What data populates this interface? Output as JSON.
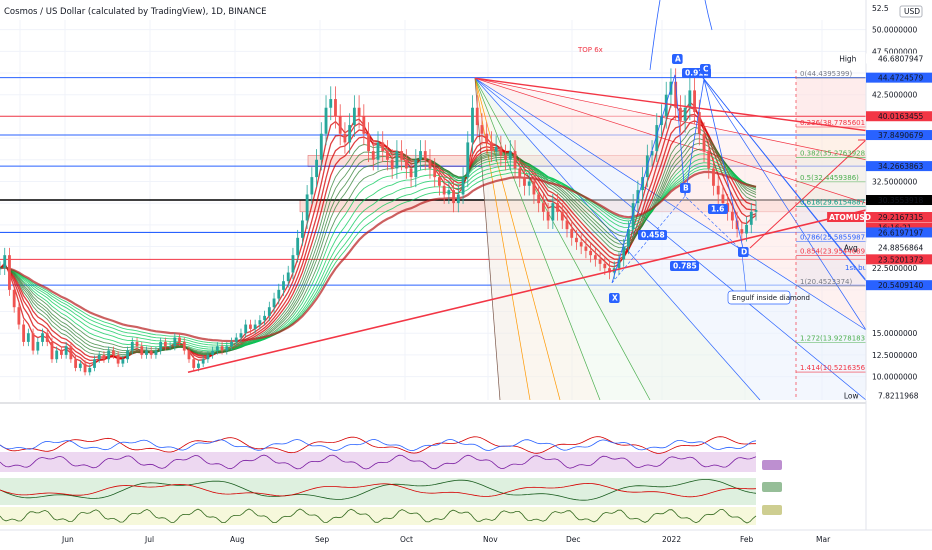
{
  "chart_data": {
    "type": "candlestick",
    "title": "Cosmos / US Dollar (calculated by TradingView), 1D, BINANCE",
    "currency_badge": "USD",
    "x_tick_labels": [
      "Jun",
      "Jul",
      "Aug",
      "Sep",
      "Oct",
      "Nov",
      "Dec",
      "2022",
      "Feb",
      "Mar"
    ],
    "y_tick_labels": [
      "52.5",
      "50.0000000",
      "47.5000000",
      "42.5000000",
      "32.5000000",
      "22.5000000",
      "15.0000000",
      "12.5000000",
      "10.0000000"
    ],
    "price_markers": [
      {
        "label": "High",
        "value": "46.6807947",
        "color": "#ffffff",
        "text_color": "#131722"
      },
      {
        "label": "",
        "value": "44.4724579",
        "color": "#2962ff",
        "text_color": "#ffffff"
      },
      {
        "label": "",
        "value": "40.0163455",
        "color": "#f23645",
        "text_color": "#ffffff"
      },
      {
        "label": "",
        "value": "37.8490679",
        "color": "#2962ff",
        "text_color": "#ffffff"
      },
      {
        "label": "",
        "value": "34.2663863",
        "color": "#2962ff",
        "text_color": "#ffffff"
      },
      {
        "label": "",
        "value": "30.3553918",
        "color": "#000000",
        "text_color": "#ffffff"
      },
      {
        "label": "ATOMUSD",
        "value": "29.2167315",
        "color": "#f23645",
        "text_color": "#ffffff"
      },
      {
        "label": "",
        "value": "16:16:21",
        "color": "#f23645",
        "text_color": "#ffffff"
      },
      {
        "label": "",
        "value": "26.6197197",
        "color": "#2962ff",
        "text_color": "#ffffff"
      },
      {
        "label": "Avg",
        "value": "24.8856864",
        "color": "#ffffff",
        "text_color": "#131722"
      },
      {
        "label": "",
        "value": "23.5201373",
        "color": "#f23645",
        "text_color": "#ffffff"
      },
      {
        "label": "",
        "value": "20.5409140",
        "color": "#2962ff",
        "text_color": "#ffffff"
      },
      {
        "label": "Low",
        "value": "7.8211968",
        "color": "#ffffff",
        "text_color": "#131722"
      }
    ],
    "fib_levels": [
      {
        "label": "0(44.4395399)",
        "color": "#787b86"
      },
      {
        "label": "0.236(38.7785601)",
        "color": "#f23645"
      },
      {
        "label": "0.382(35.2763928)",
        "color": "#4caf50"
      },
      {
        "label": "0.5(32.4459386)",
        "color": "#4caf50"
      },
      {
        "label": "0.618(29.6154887)",
        "color": "#089981"
      },
      {
        "label": "0.786(25.5855987)",
        "color": "#2962ff"
      },
      {
        "label": "0.854(23.9544689)",
        "color": "#f23645"
      },
      {
        "label": "1(20.4523374)",
        "color": "#787b86"
      },
      {
        "label": "1.272(13.9278183)",
        "color": "#4caf50"
      },
      {
        "label": "1.414(10.5216356)",
        "color": "#f23645"
      }
    ],
    "annotations": {
      "top": "TOP 6x",
      "pattern_a": "A",
      "pattern_b": "B",
      "pattern_c": "C",
      "pattern_d": "D",
      "pattern_x": "X",
      "ratio_bc": "0.912",
      "ratio_xb": "0.458",
      "ratio_ad": "0.785",
      "ratio_bd": "1.6",
      "engulf": "Engulf inside diamond",
      "buy_signal": "1st buy signal"
    },
    "price_series": {
      "description": "Approximate daily ATOM/USD closes, mid-May 2021 to early Feb 2022, in USD",
      "values": [
        22.5,
        24,
        20,
        18,
        16,
        14,
        15,
        13,
        14,
        15,
        14,
        12,
        13,
        12.5,
        13.5,
        12,
        11,
        11.5,
        10.5,
        11,
        12,
        12.5,
        12,
        13,
        12.5,
        11.5,
        12,
        13,
        14,
        13.5,
        12.5,
        13,
        12.5,
        13,
        14,
        13.5,
        13.5,
        14.5,
        14,
        13,
        12,
        11,
        11.5,
        12,
        12.5,
        13,
        13.5,
        13,
        13.5,
        14,
        14.5,
        15,
        16,
        15.5,
        16,
        16.5,
        17,
        18,
        19,
        20,
        21,
        22,
        24,
        26,
        28,
        31,
        33,
        35,
        38,
        41,
        42,
        40,
        38,
        37,
        39,
        41,
        40,
        38,
        36,
        35,
        37,
        36,
        35,
        34,
        36,
        35,
        34,
        33,
        35,
        36,
        35,
        34,
        33,
        32,
        31,
        31.5,
        30,
        31,
        33,
        37,
        41,
        39,
        38,
        37,
        36,
        36.5,
        35.5,
        35,
        36,
        34,
        33,
        32,
        32.5,
        31,
        30,
        29,
        28,
        30,
        29,
        28,
        27,
        26,
        25.5,
        25,
        24.5,
        24,
        23.5,
        23,
        22.5,
        22,
        22.5,
        23.5,
        25,
        27,
        30,
        31.5,
        33,
        35.5,
        36,
        39,
        40,
        42.5,
        44,
        41,
        39.5,
        41,
        43,
        40.5,
        38,
        36,
        34,
        32,
        31,
        30,
        29,
        28,
        27,
        26.5,
        27.5,
        29,
        29.2
      ],
      "x_min": 0,
      "x_max": 315,
      "y_min": 7.8,
      "y_max": 52.5
    },
    "oscillator_labels": [
      "",
      "",
      "",
      ""
    ],
    "oscillator_scale": [
      "500",
      "400",
      "300",
      "200",
      "100",
      "0"
    ],
    "osc_badges": [
      "",
      "",
      "",
      ""
    ]
  }
}
